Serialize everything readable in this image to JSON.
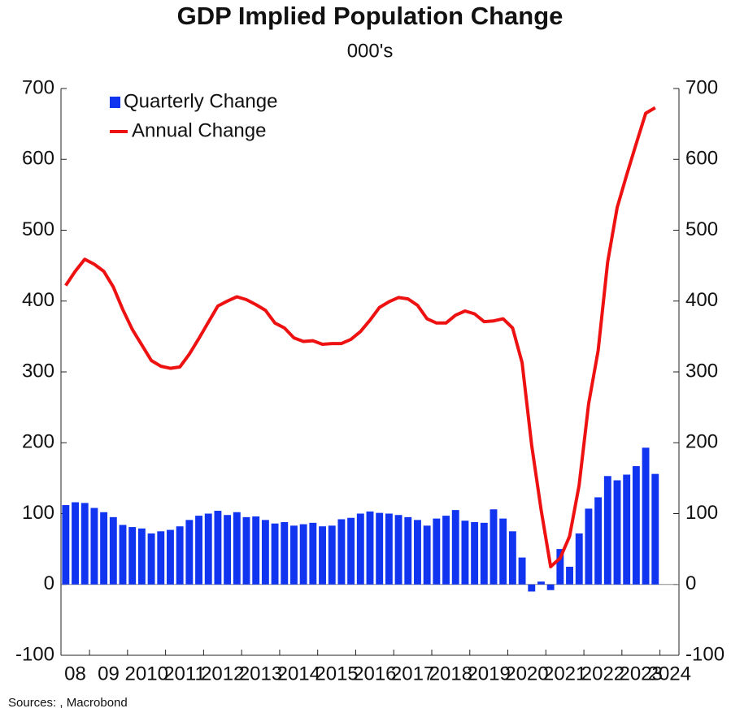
{
  "chart_data": {
    "type": "bar-line",
    "title": "GDP Implied Population Change",
    "subtitle": "000's",
    "source": "Sources: , Macrobond",
    "xlim": [
      2008.25,
      2024.5
    ],
    "xticks": [
      {
        "value": 2008,
        "label": "08"
      },
      {
        "value": 2009,
        "label": "09"
      },
      2010,
      2011,
      2012,
      2013,
      2014,
      2015,
      2016,
      2017,
      2018,
      2019,
      2020,
      2021,
      2022,
      2023,
      2024
    ],
    "ylim": [
      -100,
      700
    ],
    "yticks": [
      -100,
      0,
      100,
      200,
      300,
      400,
      500,
      600,
      700
    ],
    "y2lim": [
      -100,
      700
    ],
    "y2ticks": [
      -100,
      0,
      100,
      200,
      300,
      400,
      500,
      600,
      700
    ],
    "legend": "top-left",
    "series": [
      {
        "name": "Quarterly Change",
        "type": "bar",
        "color": "#1034f0",
        "values": [
          112,
          116,
          115,
          108,
          102,
          95,
          84,
          81,
          79,
          72,
          75,
          77,
          82,
          91,
          97,
          100,
          104,
          98,
          102,
          95,
          96,
          91,
          86,
          88,
          83,
          85,
          87,
          82,
          83,
          92,
          94,
          100,
          103,
          101,
          100,
          98,
          95,
          91,
          83,
          93,
          97,
          105,
          90,
          88,
          87,
          106,
          93,
          75,
          38,
          -10,
          4,
          -8,
          50,
          25,
          72,
          107,
          123,
          153,
          147,
          155,
          167,
          193,
          156
        ]
      },
      {
        "name": "Annual Change",
        "type": "line",
        "axis": "y2",
        "color": "#ee1111",
        "values": [
          422,
          442,
          459,
          452,
          442,
          420,
          388,
          360,
          338,
          316,
          308,
          305,
          307,
          325,
          347,
          370,
          393,
          400,
          406,
          402,
          395,
          387,
          369,
          362,
          348,
          343,
          344,
          339,
          340,
          340,
          346,
          357,
          373,
          391,
          399,
          405,
          403,
          394,
          375,
          369,
          369,
          380,
          386,
          382,
          371,
          372,
          375,
          362,
          313,
          197,
          105,
          25,
          37,
          68,
          140,
          255,
          330,
          455,
          532,
          578,
          622,
          665,
          673
        ]
      }
    ]
  }
}
